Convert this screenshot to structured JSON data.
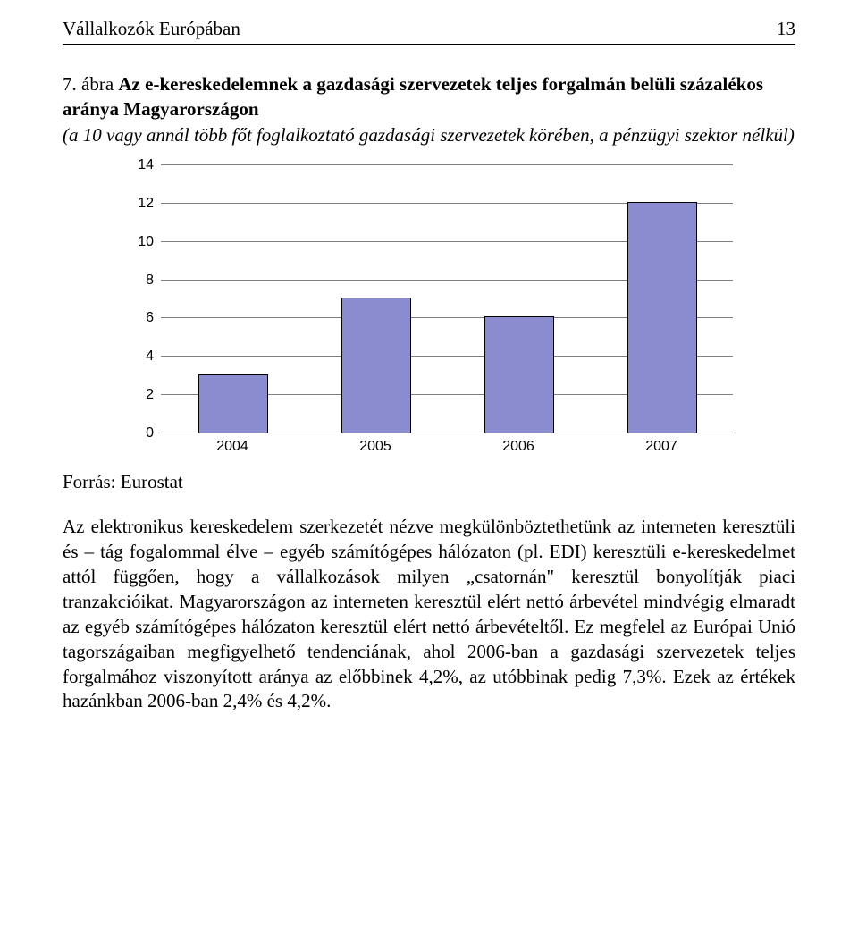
{
  "header": {
    "title": "Vállalkozók Európában",
    "page_number": "13"
  },
  "figure": {
    "caption_number": "7. ábra",
    "caption_bold": "Az e-kereskedelemnek a gazdasági szervezetek teljes forgalmán belüli százalékos aránya Magyarországon",
    "caption_italic": "(a 10 vagy annál több főt foglalkoztató gazdasági szervezetek körében, a pénzügyi szektor nélkül)"
  },
  "chart": {
    "type": "bar",
    "categories": [
      "2004",
      "2005",
      "2006",
      "2007"
    ],
    "values": [
      3,
      7,
      6,
      12
    ],
    "y_ticks": [
      0,
      2,
      4,
      6,
      8,
      10,
      12,
      14
    ],
    "ylim_max": 14,
    "bar_color": "#8b8bd0",
    "bar_border_color": "#000000",
    "grid_color": "#808080",
    "background_color": "#ffffff",
    "bar_width_pct": 12,
    "font_family": "Arial",
    "font_size": 16
  },
  "source_label": "Forrás: Eurostat",
  "body": "Az elektronikus kereskedelem szerkezetét nézve megkülönböztethetünk az interneten keresztüli és – tág fogalommal élve – egyéb számítógépes hálózaton (pl. EDI) keresztüli e-kereskedelmet attól függően, hogy a vállalkozások milyen „csatornán\" keresztül bonyolítják piaci tranzakcióikat. Magyarországon az interneten keresztül elért nettó árbevétel mindvégig elmaradt az egyéb számítógépes hálózaton keresztül elért nettó árbevételtől. Ez megfelel az Európai Unió tagországaiban megfigyelhető tendenciának, ahol 2006-ban a gazdasági szervezetek teljes forgalmához viszonyított aránya az előbbinek 4,2%, az utóbbinak pedig 7,3%. Ezek az értékek hazánkban 2006-ban 2,4% és 4,2%."
}
